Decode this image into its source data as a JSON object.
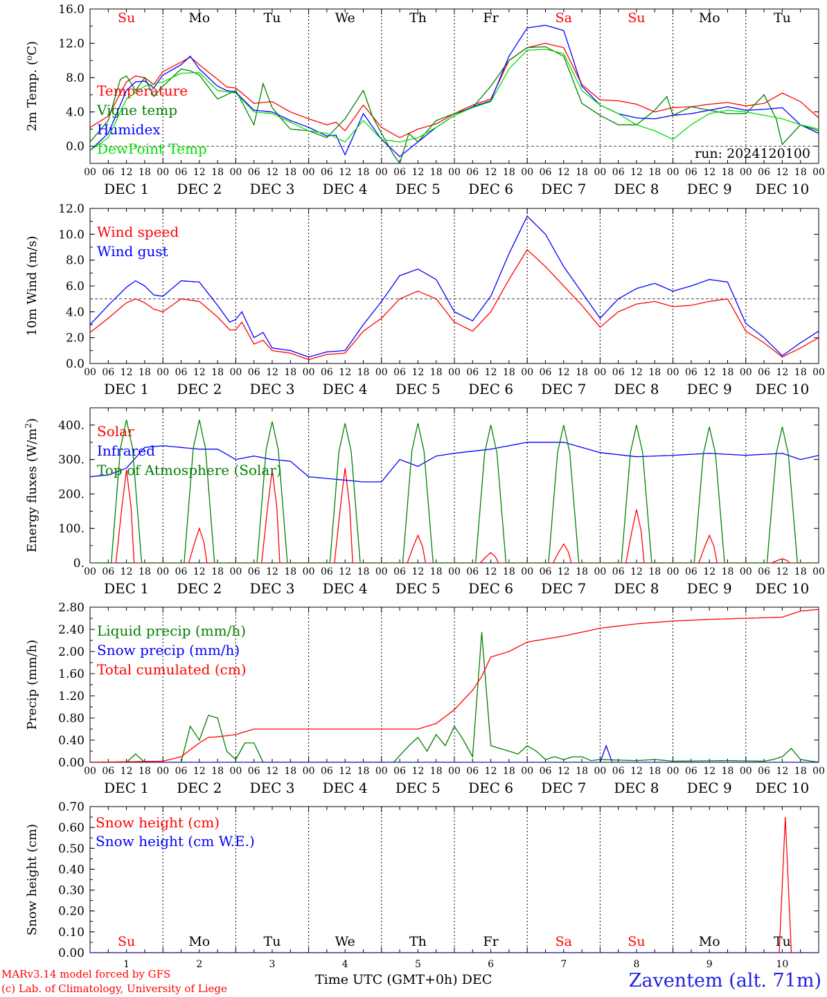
{
  "footer": {
    "credit_1": "MARv3.14 model forced by GFS",
    "credit_2": "(c) Lab. of Climatology, University of Liege",
    "xcaption": "Time UTC (GMT+0h) DEC",
    "station": "Zaventem (alt. 71m)"
  },
  "colors": {
    "red": "#ff0000",
    "blue": "#0000ff",
    "green": "#008000",
    "lightgreen": "#00e000",
    "weekend": "#ff0000"
  },
  "chart_data": [
    {
      "type": "line",
      "title": "",
      "ylabel": "2m Temp. (oC)",
      "ylim": [
        -2,
        16
      ],
      "yticks": [
        "0.0",
        "4.0",
        "8.0",
        "12.0",
        "16.0"
      ],
      "days": [
        "Su",
        "Mo",
        "Tu",
        "We",
        "Th",
        "Fr",
        "Sa",
        "Su",
        "Mo",
        "Tu"
      ],
      "weekend": [
        true,
        false,
        false,
        false,
        false,
        false,
        true,
        true,
        false,
        false
      ],
      "date_labels": [
        "DEC 1",
        "DEC 2",
        "DEC 3",
        "DEC 4",
        "DEC 5",
        "DEC 6",
        "DEC 7",
        "DEC 8",
        "DEC 9",
        "DEC 10"
      ],
      "hour_labels": [
        "00",
        "06",
        "12",
        "18"
      ],
      "run_label": "run: 2024120100",
      "reference_line": 0,
      "x_unit": "hours since Dec 1 00 UTC",
      "series": [
        {
          "name": "Temperature",
          "color": "#ff0000",
          "x": [
            0,
            6,
            12,
            15,
            18,
            21,
            24,
            30,
            33,
            36,
            42,
            45,
            48,
            54,
            60,
            66,
            72,
            78,
            81,
            84,
            90,
            96,
            102,
            108,
            114,
            120,
            126,
            132,
            138,
            144,
            150,
            156,
            162,
            168,
            174,
            180,
            186,
            192,
            198,
            204,
            210,
            216,
            222,
            228,
            234,
            240
          ],
          "y": [
            2.2,
            3.5,
            7.5,
            8.2,
            8.0,
            7.2,
            8.7,
            9.8,
            10.4,
            9.5,
            7.8,
            6.9,
            6.8,
            5.0,
            5.2,
            4.0,
            3.2,
            2.5,
            2.8,
            1.8,
            4.8,
            2.2,
            1.0,
            2.0,
            2.6,
            3.8,
            4.8,
            5.5,
            10.0,
            11.5,
            12.0,
            11.5,
            7.2,
            5.4,
            5.3,
            4.9,
            4.0,
            4.5,
            4.6,
            4.9,
            5.1,
            4.7,
            5.0,
            6.2,
            5.2,
            3.3
          ]
        },
        {
          "name": "Vigne temp",
          "color": "#008000",
          "x": [
            0,
            6,
            10,
            12,
            15,
            18,
            21,
            24,
            30,
            33,
            36,
            42,
            45,
            48,
            54,
            57,
            60,
            63,
            66,
            72,
            78,
            84,
            90,
            93,
            96,
            100,
            102,
            105,
            108,
            114,
            120,
            126,
            132,
            138,
            144,
            150,
            156,
            162,
            168,
            174,
            180,
            186,
            190,
            192,
            198,
            204,
            210,
            216,
            222,
            226,
            228,
            234,
            240
          ],
          "y": [
            0.5,
            3.0,
            7.8,
            8.2,
            6.5,
            8.0,
            5.8,
            7.0,
            9.0,
            8.8,
            8.3,
            5.5,
            6.0,
            6.5,
            2.5,
            7.3,
            4.5,
            3.2,
            2.0,
            1.8,
            1.0,
            3.2,
            6.5,
            3.5,
            1.5,
            -1.0,
            -2.0,
            1.5,
            0.5,
            3.0,
            3.8,
            4.5,
            7.0,
            10.0,
            11.5,
            11.6,
            10.5,
            5.0,
            3.6,
            2.5,
            2.5,
            4.2,
            5.8,
            3.6,
            4.6,
            4.2,
            3.8,
            3.8,
            6.0,
            3.2,
            0.2,
            2.5,
            1.8
          ]
        },
        {
          "name": "Humidex",
          "color": "#0000ff",
          "x": [
            0,
            6,
            12,
            15,
            18,
            21,
            24,
            30,
            33,
            36,
            42,
            45,
            48,
            54,
            60,
            66,
            72,
            78,
            81,
            84,
            90,
            96,
            102,
            108,
            114,
            120,
            126,
            132,
            138,
            144,
            150,
            156,
            162,
            168,
            174,
            180,
            186,
            192,
            198,
            204,
            210,
            216,
            222,
            228,
            234,
            240
          ],
          "y": [
            -0.5,
            1.5,
            6.5,
            7.5,
            7.6,
            6.8,
            8.3,
            9.5,
            10.5,
            9.0,
            7.0,
            6.5,
            6.3,
            4.2,
            4.0,
            3.0,
            2.2,
            1.2,
            1.3,
            -1.0,
            3.8,
            0.8,
            -1.2,
            0.5,
            2.2,
            3.6,
            4.6,
            5.3,
            10.5,
            13.8,
            14.1,
            13.5,
            7.0,
            4.8,
            3.8,
            3.3,
            3.2,
            3.6,
            3.8,
            4.2,
            4.6,
            4.2,
            4.3,
            4.5,
            2.5,
            1.5
          ]
        },
        {
          "name": "DewPoint Temp",
          "color": "#00e000",
          "x": [
            0,
            6,
            12,
            18,
            24,
            30,
            36,
            42,
            48,
            54,
            60,
            66,
            72,
            78,
            84,
            90,
            96,
            102,
            108,
            114,
            120,
            126,
            132,
            138,
            144,
            150,
            156,
            162,
            168,
            174,
            180,
            186,
            192,
            198,
            204,
            210,
            216,
            222,
            228,
            234,
            240
          ],
          "y": [
            -0.5,
            1.0,
            5.5,
            7.0,
            7.5,
            8.5,
            8.6,
            6.5,
            6.2,
            4.0,
            3.8,
            2.8,
            1.8,
            1.5,
            0.5,
            3.0,
            0.8,
            0.5,
            1.0,
            2.2,
            3.6,
            4.5,
            5.2,
            9.0,
            11.2,
            11.3,
            10.8,
            6.5,
            4.8,
            3.8,
            2.5,
            1.8,
            0.8,
            2.5,
            3.8,
            4.2,
            4.0,
            3.6,
            3.2,
            2.5,
            2.0
          ]
        }
      ]
    },
    {
      "type": "line",
      "title": "",
      "ylabel": "10m Wind (m/s)",
      "ylim": [
        0,
        12
      ],
      "yticks": [
        "0.0",
        "2.0",
        "4.0",
        "6.0",
        "8.0",
        "10.0",
        "12.0"
      ],
      "date_labels": [
        "DEC 1",
        "DEC 2",
        "DEC 3",
        "DEC 4",
        "DEC 5",
        "DEC 6",
        "DEC 7",
        "DEC 8",
        "DEC 9",
        "DEC 10"
      ],
      "hour_labels": [
        "00",
        "06",
        "12",
        "18"
      ],
      "reference_line": 5,
      "series": [
        {
          "name": "Wind speed",
          "color": "#ff0000",
          "x": [
            0,
            6,
            12,
            15,
            18,
            21,
            24,
            30,
            36,
            42,
            46,
            48,
            50,
            54,
            57,
            60,
            63,
            66,
            72,
            78,
            84,
            90,
            96,
            102,
            108,
            114,
            120,
            126,
            132,
            138,
            144,
            150,
            156,
            162,
            168,
            174,
            180,
            186,
            192,
            198,
            204,
            210,
            216,
            222,
            228,
            234,
            240
          ],
          "y": [
            2.4,
            3.5,
            4.7,
            5.0,
            4.7,
            4.2,
            4.0,
            5.0,
            4.8,
            3.6,
            2.6,
            2.6,
            3.2,
            1.5,
            1.8,
            1.0,
            0.9,
            0.8,
            0.3,
            0.7,
            0.8,
            2.5,
            3.5,
            5.0,
            5.6,
            5.0,
            3.2,
            2.5,
            4.0,
            6.5,
            8.8,
            7.5,
            6.0,
            4.5,
            2.8,
            4.0,
            4.6,
            4.8,
            4.4,
            4.5,
            4.8,
            5.0,
            2.5,
            1.6,
            0.5,
            1.2,
            2.0
          ]
        },
        {
          "name": "Wind gust",
          "color": "#0000ff",
          "x": [
            0,
            6,
            12,
            15,
            18,
            21,
            24,
            30,
            36,
            42,
            46,
            48,
            50,
            54,
            57,
            60,
            63,
            66,
            72,
            78,
            84,
            90,
            96,
            102,
            108,
            114,
            120,
            126,
            132,
            138,
            144,
            150,
            156,
            162,
            168,
            174,
            180,
            186,
            192,
            198,
            204,
            210,
            216,
            222,
            228,
            234,
            240
          ],
          "y": [
            3.0,
            4.5,
            5.9,
            6.4,
            6.0,
            5.3,
            5.2,
            6.4,
            6.3,
            4.5,
            3.2,
            3.4,
            4.0,
            2.0,
            2.4,
            1.2,
            1.1,
            1.0,
            0.5,
            0.9,
            1.0,
            3.0,
            4.8,
            6.8,
            7.3,
            6.5,
            4.0,
            3.3,
            5.2,
            8.5,
            11.4,
            10.0,
            7.5,
            5.5,
            3.5,
            5.0,
            5.8,
            6.2,
            5.6,
            6.0,
            6.5,
            6.3,
            3.1,
            2.0,
            0.6,
            1.6,
            2.5
          ]
        }
      ]
    },
    {
      "type": "line",
      "title": "",
      "ylabel": "Energy fluxes (W/m2)",
      "ylim": [
        0,
        450
      ],
      "yticks": [
        "0.",
        "100.",
        "200.",
        "300.",
        "400."
      ],
      "date_labels": [
        "DEC 1",
        "DEC 2",
        "DEC 3",
        "DEC 4",
        "DEC 5",
        "DEC 6",
        "DEC 7",
        "DEC 8",
        "DEC 9",
        "DEC 10"
      ],
      "hour_labels": [
        "00",
        "06",
        "12",
        "18"
      ],
      "series": [
        {
          "name": "Solar",
          "color": "#ff0000",
          "daily_peak": [
            270,
            100,
            270,
            275,
            80,
            30,
            55,
            155,
            80,
            12
          ]
        },
        {
          "name": "Infrared",
          "color": "#0000ff",
          "x": [
            0,
            6,
            12,
            18,
            24,
            30,
            36,
            42,
            48,
            54,
            60,
            66,
            72,
            78,
            84,
            90,
            96,
            102,
            108,
            114,
            120,
            132,
            144,
            156,
            168,
            180,
            192,
            204,
            216,
            228,
            234,
            240
          ],
          "y": [
            250,
            255,
            275,
            335,
            340,
            335,
            330,
            330,
            300,
            310,
            300,
            295,
            250,
            245,
            240,
            235,
            235,
            300,
            280,
            310,
            318,
            330,
            350,
            350,
            320,
            308,
            312,
            318,
            312,
            318,
            300,
            312
          ]
        },
        {
          "name": "Top of Atmosphere (Solar)",
          "color": "#008000",
          "daily_peak": [
            415,
            415,
            410,
            405,
            405,
            400,
            400,
            400,
            395,
            395
          ]
        }
      ]
    },
    {
      "type": "line",
      "title": "",
      "ylabel": "Precip (mm/h)",
      "ylim": [
        0,
        2.8
      ],
      "yticks": [
        "0.00",
        "0.40",
        "0.80",
        "1.20",
        "1.60",
        "2.00",
        "2.40",
        "2.80"
      ],
      "date_labels": [
        "DEC 1",
        "DEC 2",
        "DEC 3",
        "DEC 4",
        "DEC 5",
        "DEC 6",
        "DEC 7",
        "DEC 8",
        "DEC 9",
        "DEC 10"
      ],
      "hour_labels": [
        "00",
        "06",
        "12",
        "18"
      ],
      "series": [
        {
          "name": "Liquid precip (mm/h)",
          "color": "#008000",
          "x": [
            0,
            12,
            15,
            18,
            30,
            33,
            36,
            39,
            42,
            45,
            48,
            51,
            54,
            57,
            60,
            100,
            105,
            108,
            111,
            114,
            117,
            120,
            123,
            126,
            129,
            132,
            135,
            138,
            141,
            144,
            147,
            150,
            153,
            156,
            159,
            162,
            165,
            168,
            180,
            186,
            192,
            210,
            222,
            225,
            228,
            231,
            234,
            240
          ],
          "y": [
            0,
            0,
            0.15,
            0,
            0,
            0.65,
            0.4,
            0.85,
            0.8,
            0.2,
            0.05,
            0.35,
            0.35,
            0,
            0,
            0,
            0.3,
            0.45,
            0.2,
            0.5,
            0.3,
            0.65,
            0.4,
            0.1,
            2.35,
            0.3,
            0.25,
            0.2,
            0.15,
            0.3,
            0.2,
            0.05,
            0.1,
            0.05,
            0.1,
            0.1,
            0.03,
            0.05,
            0.03,
            0.05,
            0.02,
            0.03,
            0.02,
            0.05,
            0.1,
            0.25,
            0.05,
            0
          ]
        },
        {
          "name": "Snow precip (mm/h)",
          "color": "#0000ff",
          "x": [
            0,
            168,
            170,
            172,
            240
          ],
          "y": [
            0,
            0,
            0.3,
            0,
            0
          ]
        },
        {
          "name": "Total cumulated (cm)",
          "color": "#ff0000",
          "x": [
            0,
            24,
            30,
            36,
            39,
            42,
            48,
            51,
            54,
            108,
            114,
            120,
            126,
            129,
            132,
            138,
            144,
            156,
            168,
            180,
            192,
            204,
            216,
            228,
            234,
            240
          ],
          "y": [
            0,
            0.02,
            0.1,
            0.35,
            0.45,
            0.46,
            0.5,
            0.55,
            0.6,
            0.6,
            0.7,
            0.95,
            1.3,
            1.55,
            1.9,
            2.0,
            2.17,
            2.28,
            2.42,
            2.5,
            2.55,
            2.58,
            2.6,
            2.62,
            2.73,
            2.76
          ]
        }
      ]
    },
    {
      "type": "line",
      "title": "",
      "ylabel": "Snow height (cm)",
      "ylim": [
        0,
        0.7
      ],
      "yticks": [
        "0.00",
        "0.10",
        "0.20",
        "0.30",
        "0.40",
        "0.50",
        "0.60",
        "0.70"
      ],
      "days": [
        "Su",
        "Mo",
        "Tu",
        "We",
        "Th",
        "Fr",
        "Sa",
        "Su",
        "Mo",
        "Tu"
      ],
      "weekend": [
        true,
        false,
        false,
        false,
        false,
        false,
        true,
        true,
        false,
        false
      ],
      "day_numbers": [
        "1",
        "2",
        "3",
        "4",
        "5",
        "6",
        "7",
        "8",
        "9",
        "10"
      ],
      "series": [
        {
          "name": "Snow height (cm)",
          "color": "#ff0000",
          "x": [
            0,
            227,
            229,
            231,
            240
          ],
          "y": [
            0,
            0,
            0.65,
            0,
            0
          ]
        },
        {
          "name": "Snow height (cm W.E.)",
          "color": "#0000ff",
          "x": [
            0,
            240
          ],
          "y": [
            0,
            0
          ]
        }
      ]
    }
  ]
}
